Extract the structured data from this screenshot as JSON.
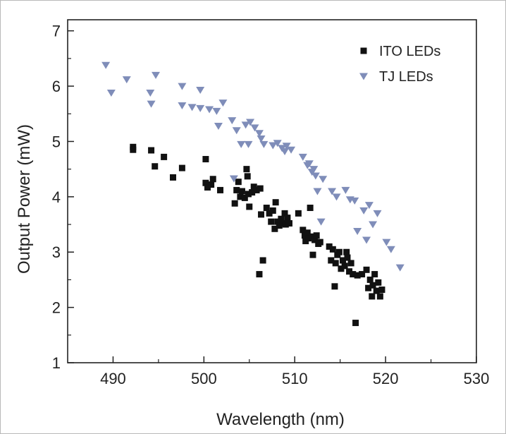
{
  "chart_data": {
    "type": "scatter",
    "title": "",
    "xlabel": "Wavelength (nm)",
    "ylabel": "Output Power (mW)",
    "xlim": [
      485,
      530
    ],
    "ylim": [
      1,
      7.2
    ],
    "xticks": [
      490,
      500,
      510,
      520,
      530
    ],
    "yticks": [
      1,
      2,
      3,
      4,
      5,
      6,
      7
    ],
    "legend_position": "top-right",
    "grid": false,
    "series": [
      {
        "name": "ITO LEDs",
        "marker": "square",
        "color": "#111111",
        "points": [
          [
            492.2,
            4.9
          ],
          [
            492.2,
            4.85
          ],
          [
            494.2,
            4.84
          ],
          [
            494.6,
            4.55
          ],
          [
            495.6,
            4.72
          ],
          [
            496.6,
            4.35
          ],
          [
            497.6,
            4.52
          ],
          [
            500.2,
            4.68
          ],
          [
            500.2,
            4.25
          ],
          [
            500.4,
            4.17
          ],
          [
            500.8,
            4.22
          ],
          [
            501.0,
            4.32
          ],
          [
            501.8,
            4.12
          ],
          [
            503.4,
            3.88
          ],
          [
            503.6,
            4.12
          ],
          [
            503.8,
            4.27
          ],
          [
            504.0,
            4.0
          ],
          [
            504.2,
            4.1
          ],
          [
            504.5,
            3.98
          ],
          [
            504.7,
            4.5
          ],
          [
            504.8,
            4.37
          ],
          [
            504.9,
            4.05
          ],
          [
            505.0,
            3.82
          ],
          [
            505.3,
            4.08
          ],
          [
            505.5,
            4.18
          ],
          [
            505.8,
            4.12
          ],
          [
            506.2,
            4.15
          ],
          [
            506.3,
            3.68
          ],
          [
            506.5,
            2.85
          ],
          [
            506.1,
            2.6
          ],
          [
            506.9,
            3.8
          ],
          [
            507.2,
            3.7
          ],
          [
            507.4,
            3.55
          ],
          [
            507.6,
            3.75
          ],
          [
            507.8,
            3.42
          ],
          [
            507.9,
            3.9
          ],
          [
            508.1,
            3.55
          ],
          [
            508.3,
            3.48
          ],
          [
            508.5,
            3.6
          ],
          [
            508.7,
            3.52
          ],
          [
            508.9,
            3.7
          ],
          [
            509.0,
            3.5
          ],
          [
            509.2,
            3.62
          ],
          [
            509.4,
            3.52
          ],
          [
            510.4,
            3.7
          ],
          [
            510.9,
            3.4
          ],
          [
            511.1,
            3.3
          ],
          [
            511.2,
            3.2
          ],
          [
            511.4,
            3.35
          ],
          [
            511.5,
            3.25
          ],
          [
            511.7,
            3.8
          ],
          [
            511.9,
            3.28
          ],
          [
            512.0,
            2.95
          ],
          [
            512.2,
            3.22
          ],
          [
            512.4,
            3.3
          ],
          [
            512.6,
            3.15
          ],
          [
            512.8,
            3.18
          ],
          [
            513.8,
            3.1
          ],
          [
            514.0,
            2.85
          ],
          [
            514.2,
            3.05
          ],
          [
            514.4,
            2.38
          ],
          [
            514.5,
            2.8
          ],
          [
            514.7,
            2.95
          ],
          [
            514.9,
            3.0
          ],
          [
            515.1,
            2.7
          ],
          [
            515.3,
            2.85
          ],
          [
            515.5,
            2.75
          ],
          [
            515.7,
            3.0
          ],
          [
            515.8,
            2.9
          ],
          [
            516.0,
            2.65
          ],
          [
            516.2,
            2.8
          ],
          [
            516.4,
            2.6
          ],
          [
            516.7,
            1.72
          ],
          [
            516.9,
            2.58
          ],
          [
            517.4,
            2.6
          ],
          [
            517.9,
            2.68
          ],
          [
            518.1,
            2.35
          ],
          [
            518.3,
            2.5
          ],
          [
            518.5,
            2.2
          ],
          [
            518.6,
            2.4
          ],
          [
            518.8,
            2.6
          ],
          [
            519.0,
            2.3
          ],
          [
            519.2,
            2.45
          ],
          [
            519.4,
            2.2
          ],
          [
            519.6,
            2.32
          ]
        ]
      },
      {
        "name": "TJ LEDs",
        "marker": "triangle-down",
        "color": "#7f8db9",
        "points": [
          [
            489.2,
            6.38
          ],
          [
            489.8,
            5.88
          ],
          [
            491.5,
            6.12
          ],
          [
            494.1,
            5.88
          ],
          [
            494.2,
            5.68
          ],
          [
            494.7,
            6.2
          ],
          [
            497.6,
            6.0
          ],
          [
            497.6,
            5.65
          ],
          [
            498.7,
            5.62
          ],
          [
            499.6,
            5.93
          ],
          [
            499.6,
            5.6
          ],
          [
            500.6,
            5.58
          ],
          [
            501.4,
            5.55
          ],
          [
            501.6,
            5.28
          ],
          [
            502.1,
            5.7
          ],
          [
            503.1,
            5.38
          ],
          [
            503.3,
            4.33
          ],
          [
            503.6,
            5.2
          ],
          [
            504.1,
            4.95
          ],
          [
            504.6,
            5.3
          ],
          [
            504.9,
            4.95
          ],
          [
            505.1,
            5.35
          ],
          [
            505.6,
            5.25
          ],
          [
            506.1,
            5.15
          ],
          [
            506.3,
            5.05
          ],
          [
            506.6,
            4.95
          ],
          [
            507.6,
            4.93
          ],
          [
            508.1,
            4.97
          ],
          [
            508.6,
            4.88
          ],
          [
            508.9,
            4.82
          ],
          [
            509.1,
            4.92
          ],
          [
            509.6,
            4.85
          ],
          [
            510.9,
            4.72
          ],
          [
            511.4,
            4.57
          ],
          [
            511.6,
            4.6
          ],
          [
            511.9,
            4.45
          ],
          [
            512.1,
            4.5
          ],
          [
            512.3,
            4.38
          ],
          [
            512.5,
            4.1
          ],
          [
            512.9,
            3.55
          ],
          [
            513.1,
            4.32
          ],
          [
            514.1,
            4.1
          ],
          [
            514.6,
            4.0
          ],
          [
            515.6,
            4.12
          ],
          [
            516.1,
            3.95
          ],
          [
            516.6,
            3.93
          ],
          [
            516.9,
            3.38
          ],
          [
            517.6,
            3.75
          ],
          [
            517.9,
            3.22
          ],
          [
            518.2,
            3.85
          ],
          [
            518.6,
            3.5
          ],
          [
            519.1,
            3.7
          ],
          [
            520.1,
            3.18
          ],
          [
            520.6,
            3.05
          ],
          [
            521.6,
            2.72
          ]
        ]
      }
    ]
  }
}
